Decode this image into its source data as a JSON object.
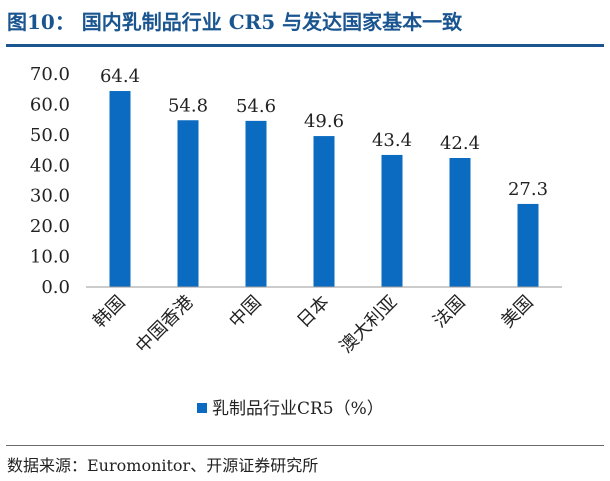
{
  "header": {
    "title": "图10：  国内乳制品行业 CR5 与发达国家基本一致"
  },
  "footer": {
    "source": "数据来源：Euromonitor、开源证券研究所"
  },
  "colors": {
    "bar": "#0a6bc0",
    "title": "#1a5590"
  },
  "chart_data": {
    "type": "bar",
    "categories": [
      "韩国",
      "中国香港",
      "中国",
      "日本",
      "澳大利亚",
      "法国",
      "美国"
    ],
    "series": [
      {
        "name": "乳制品行业CR5（%）",
        "values": [
          64.4,
          54.8,
          54.6,
          49.6,
          43.4,
          42.4,
          27.3
        ]
      }
    ],
    "data_labels": [
      "64.4",
      "54.8",
      "54.6",
      "49.6",
      "43.4",
      "42.4",
      "27.3"
    ],
    "y_ticks": [
      "0.0",
      "10.0",
      "20.0",
      "30.0",
      "40.0",
      "50.0",
      "60.0",
      "70.0"
    ],
    "ylim": [
      0,
      70
    ],
    "grid": false,
    "legend_position": "bottom"
  }
}
